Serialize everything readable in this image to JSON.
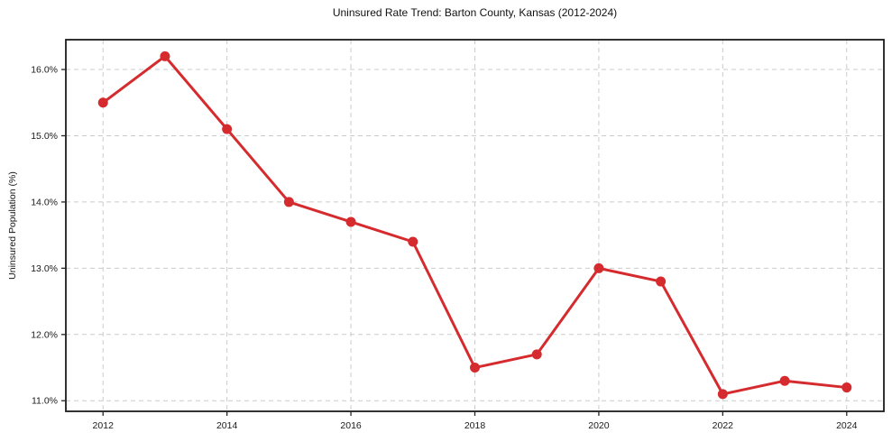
{
  "chart_data": {
    "type": "line",
    "title": "Uninsured Rate Trend: Barton County, Kansas (2012-2024)",
    "xlabel": "",
    "ylabel": "Uninsured Population (%)",
    "x": [
      2012,
      2013,
      2014,
      2015,
      2016,
      2017,
      2018,
      2019,
      2020,
      2021,
      2022,
      2023,
      2024
    ],
    "values": [
      15.5,
      16.2,
      15.1,
      14.0,
      13.7,
      13.4,
      11.5,
      11.7,
      13.0,
      12.8,
      11.1,
      11.3,
      11.2
    ],
    "xticks": [
      2012,
      2014,
      2016,
      2018,
      2020,
      2022,
      2024
    ],
    "xtick_labels": [
      "2012",
      "2014",
      "2016",
      "2018",
      "2020",
      "2022",
      "2024"
    ],
    "yticks": [
      11.0,
      12.0,
      13.0,
      14.0,
      15.0,
      16.0
    ],
    "ytick_labels": [
      "11.0%",
      "12.0%",
      "13.0%",
      "14.0%",
      "15.0%",
      "16.0%"
    ],
    "xlim": [
      2011.4,
      2024.6
    ],
    "ylim": [
      10.84,
      16.45
    ],
    "grid": true,
    "grid_style": "dashed",
    "legend_position": "none",
    "line_color": "#d62b2e",
    "grid_color": "#cbcbcb",
    "marker": "circle"
  }
}
